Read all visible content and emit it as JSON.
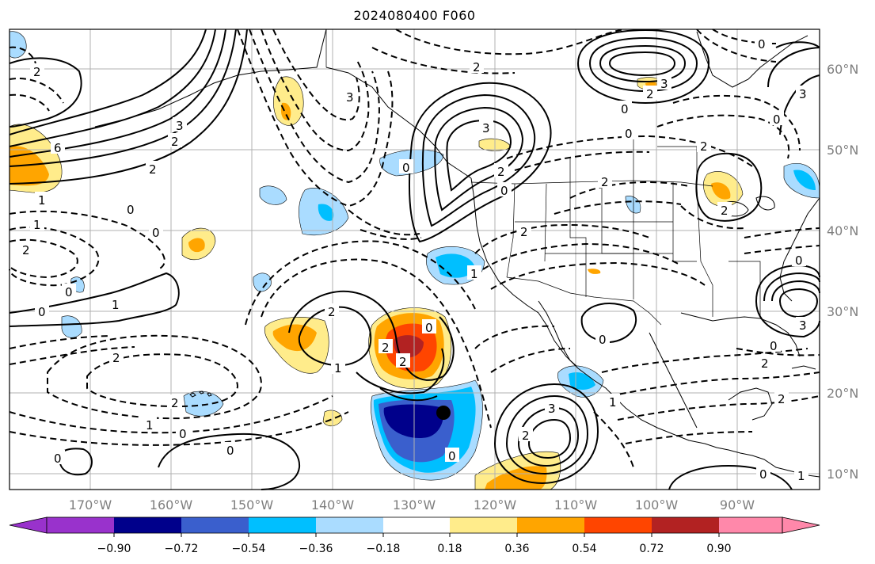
{
  "title": "2024080400 F060",
  "lon_ticks": [
    "170°W",
    "160°W",
    "150°W",
    "140°W",
    "130°W",
    "120°W",
    "110°W",
    "100°W",
    "90°W"
  ],
  "lat_ticks": [
    "60°N",
    "50°N",
    "40°N",
    "30°N",
    "20°N",
    "10°N"
  ],
  "colorbar": {
    "ticks": [
      "−0.90",
      "−0.72",
      "−0.54",
      "−0.36",
      "−0.18",
      "0.18",
      "0.36",
      "0.54",
      "0.72",
      "0.90"
    ],
    "colors": [
      "#9932cc",
      "#00008b",
      "#3a5fcd",
      "#00bfff",
      "#aadcff",
      "#ffffff",
      "#ffec8b",
      "#ffa500",
      "#ff4500",
      "#b22222",
      "#ff88aa"
    ]
  },
  "contour_labels": [
    "2",
    "3",
    "2",
    "0",
    "6",
    "2",
    "1",
    "0",
    "1",
    "2",
    "0",
    "1",
    "2",
    "1",
    "0",
    "0",
    "1",
    "2",
    "2",
    "0",
    "3",
    "2",
    "2",
    "0",
    "2",
    "1",
    "3",
    "0",
    "2",
    "0",
    "2",
    "2",
    "0",
    "2",
    "3",
    "0",
    "0",
    "2",
    "0",
    "0",
    "1",
    "2",
    "3",
    "3",
    "0",
    "2",
    "0",
    "2",
    "1",
    "0",
    "0",
    "1",
    "2",
    "3",
    "0"
  ],
  "colors": {
    "land_line": "#000000",
    "grid": "#b0b0b0",
    "tick_label": "#7f7f7f"
  }
}
